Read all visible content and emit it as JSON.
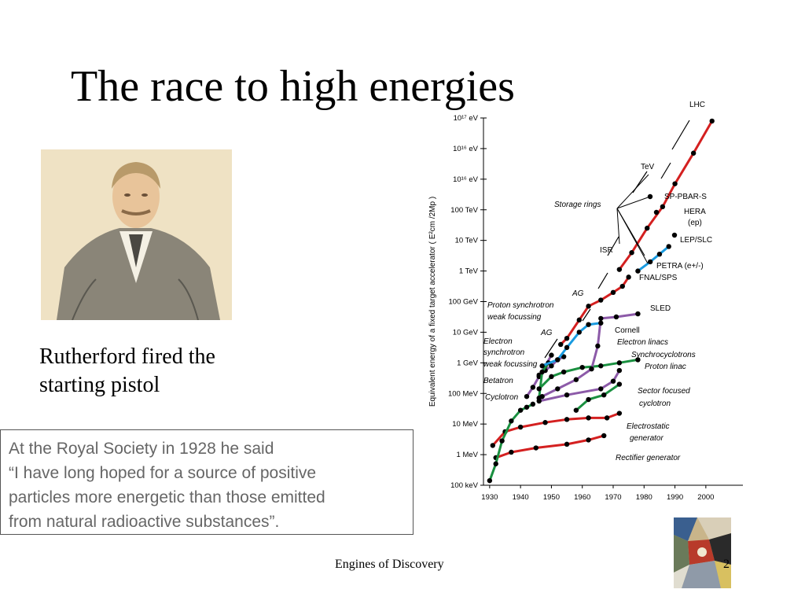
{
  "slide": {
    "title": "The race to high energies",
    "caption_line1": "Rutherford fired the",
    "caption_line2": "starting pistol",
    "quote_lines": [
      "At the Royal Society in 1928 he said",
      " “I have long hoped for a source of positive",
      "particles more energetic than those emitted",
      "from natural radioactive substances”."
    ],
    "footer": "Engines of Discovery",
    "page_number": "2"
  },
  "chart_data": {
    "type": "line",
    "ylabel": "Equivalent energy of a fixed target accelerator ( E²cm /2Mp )",
    "x_ticks": [
      "1930",
      "1940",
      "1950",
      "1960",
      "1970",
      "1980",
      "1990",
      "2000"
    ],
    "y_ticks": [
      "100 keV",
      "1 MeV",
      "10 MeV",
      "100 MeV",
      "1 GeV",
      "10 GeV",
      "100 GeV",
      "1 TeV",
      "10 TeV",
      "100 TeV",
      "10¹⁶ eV",
      "10¹⁶ eV",
      "10¹⁷ eV"
    ],
    "xlim": [
      1928,
      2012
    ],
    "ylim": [
      5,
      17
    ],
    "annotations": {
      "lhc": "LHC",
      "tev": "TeV",
      "storage_rings": "Storage rings",
      "sppbar": "SP-PBAR-S",
      "hera": "HERA",
      "hera_ep": "(ep)",
      "lep": "LEP/SLC",
      "isr": "ISR",
      "petra": "PETRA (e+/-)",
      "fnal": "FNAL/SPS",
      "ag1": "AG",
      "sled": "SLED",
      "proton_sync": "Proton synchrotron",
      "weak_focussing1": "weak focussing",
      "cornell": "Cornell",
      "ag2": "AG",
      "electron_linacs": "Electron linacs",
      "electron": "Electron",
      "synchrotron": "synchrotron",
      "weak_focussing2": "weak focussing",
      "synchrocyclotrons": "Synchrocyclotrons",
      "proton_linac": "Proton linac",
      "betatron": "Betatron",
      "sector_focused": "Sector focused",
      "cyclotron_sf": "cyclotron",
      "cyclotron": "Cyclotron",
      "electrostatic": "Electrostatic",
      "generator": "generator",
      "rectifier": "Rectifier generator"
    },
    "series": [
      {
        "key": "rectifier",
        "color": "#d42020",
        "x": [
          1932,
          1937,
          1945,
          1955,
          1962,
          1967
        ],
        "y": [
          5.9,
          6.08,
          6.22,
          6.34,
          6.48,
          6.62
        ]
      },
      {
        "key": "electrostatic",
        "color": "#d42020",
        "x": [
          1931,
          1935,
          1940,
          1948,
          1955,
          1962,
          1968,
          1972
        ],
        "y": [
          6.3,
          6.75,
          6.9,
          7.05,
          7.15,
          7.2,
          7.2,
          7.35
        ]
      },
      {
        "key": "cyclotron",
        "color": "#1a9040",
        "x": [
          1930,
          1932,
          1934,
          1937,
          1940,
          1942,
          1944
        ],
        "y": [
          5.15,
          5.7,
          6.45,
          7.1,
          7.45,
          7.55,
          7.65
        ]
      },
      {
        "key": "betatron",
        "color": "#8c5aa8",
        "x": [
          1942,
          1944,
          1946,
          1948,
          1950
        ],
        "y": [
          7.9,
          8.2,
          8.55,
          8.9,
          9.25
        ]
      },
      {
        "key": "proton_weak",
        "color": "#8c5aa8",
        "x": [
          1946,
          1948,
          1950,
          1952,
          1954
        ],
        "y": [
          8.6,
          8.75,
          8.9,
          9.1,
          9.2
        ]
      },
      {
        "key": "electron_sync",
        "color": "#1a9040",
        "x": [
          1946,
          1947,
          1949
        ],
        "y": [
          7.85,
          8.7,
          9.0
        ]
      },
      {
        "key": "sector_focused",
        "color": "#1a9040",
        "x": [
          1958,
          1962,
          1967,
          1972
        ],
        "y": [
          7.45,
          7.8,
          7.95,
          8.3
        ]
      },
      {
        "key": "synchrocyclotrons",
        "color": "#1a9040",
        "x": [
          1946,
          1950,
          1954,
          1960,
          1966,
          1972,
          1978
        ],
        "y": [
          8.15,
          8.55,
          8.7,
          8.85,
          8.9,
          9.0,
          9.1
        ]
      },
      {
        "key": "proton_linac",
        "color": "#8c5aa8",
        "x": [
          1946,
          1955,
          1966,
          1970,
          1972
        ],
        "y": [
          7.75,
          7.95,
          8.15,
          8.4,
          8.75
        ]
      },
      {
        "key": "electron_linacs",
        "color": "#8c5aa8",
        "x": [
          1947,
          1952,
          1958,
          1963,
          1965,
          1966,
          1971,
          1978
        ],
        "y": [
          7.9,
          8.15,
          8.45,
          8.8,
          9.55,
          10.45,
          10.5,
          10.6
        ]
      },
      {
        "key": "proton_sync_ag",
        "color": "#1a9be0",
        "x": [
          1947,
          1952,
          1955,
          1959,
          1962,
          1966
        ],
        "y": [
          8.9,
          9.1,
          9.5,
          10.0,
          10.25,
          10.3
        ]
      },
      {
        "key": "ag",
        "color": "#d42020",
        "x": [
          1953,
          1955,
          1959,
          1962,
          1966,
          1970,
          1973,
          1975
        ],
        "y": [
          9.6,
          9.8,
          10.4,
          10.85,
          11.05,
          11.3,
          11.5,
          11.8
        ]
      },
      {
        "key": "petra_lep",
        "color": "#1a9be0",
        "x": [
          1978,
          1982,
          1985,
          1988
        ],
        "y": [
          12.0,
          12.3,
          12.55,
          12.8
        ]
      },
      {
        "key": "storage_red",
        "color": "#d42020",
        "x": [
          1972,
          1976,
          1981,
          1986,
          1990,
          1996,
          2002
        ],
        "y": [
          12.05,
          12.6,
          13.4,
          14.1,
          14.85,
          15.85,
          16.9
        ]
      }
    ]
  }
}
